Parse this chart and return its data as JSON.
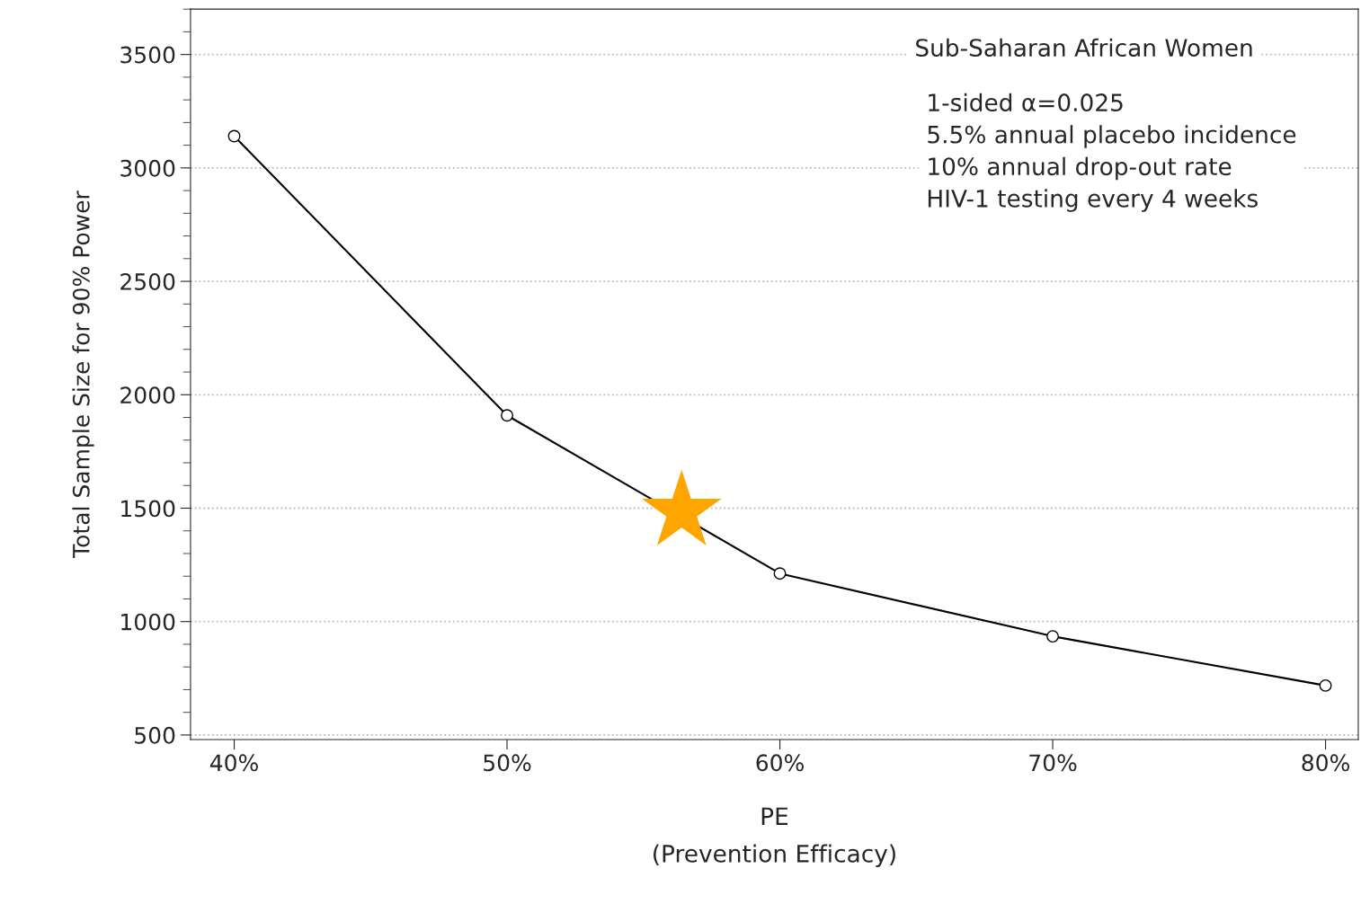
{
  "chart_data": {
    "type": "line",
    "xlabel": "PE\n(Prevention Efficacy)",
    "ylabel": "Total Sample Size for 90% Power",
    "x": [
      40,
      50,
      60,
      70,
      80
    ],
    "series": [
      {
        "color": "#000000",
        "marker": "circle",
        "values": [
          3140,
          1909,
          1212,
          935,
          718
        ]
      },
      {
        "type": "scatter",
        "color": "#ffa500",
        "marker": "star",
        "x": [
          56.4
        ],
        "values": [
          1485
        ]
      }
    ],
    "xlim": [
      38.4,
      81.2
    ],
    "ylim": [
      480,
      3700
    ],
    "xticks": [
      {
        "value": 40,
        "label": "40%"
      },
      {
        "value": 50,
        "label": "50%"
      },
      {
        "value": 60,
        "label": "60%"
      },
      {
        "value": 70,
        "label": "70%"
      },
      {
        "value": 80,
        "label": "80%"
      }
    ],
    "yticks": [
      500,
      1000,
      1500,
      2000,
      2500,
      3000,
      3500
    ],
    "grid": "y",
    "annotations": [
      "Sub-Saharan African Women",
      "1-sided α=0.025\n5.5% annual placebo incidence\n10% annual drop-out rate\nHIV-1 testing every 4 weeks"
    ]
  }
}
